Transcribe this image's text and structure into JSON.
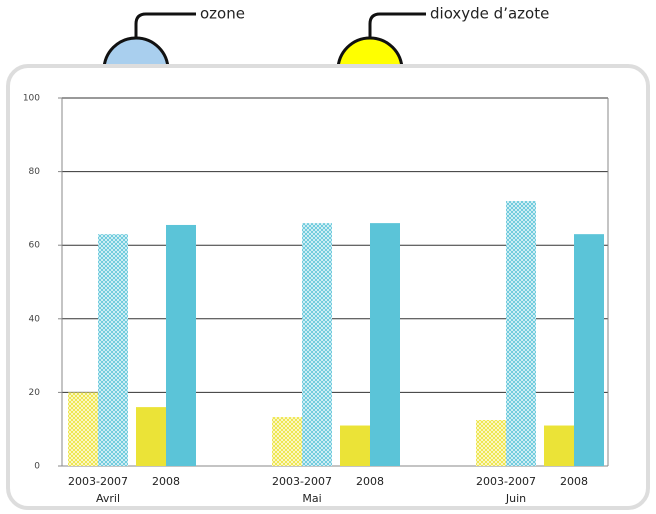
{
  "chart_data": {
    "type": "grouped_bar",
    "categories": [
      "Avril",
      "Mai",
      "Juin"
    ],
    "periods": [
      "2003-2007",
      "2008"
    ],
    "series": [
      {
        "name": "dioxyde d’azote",
        "color": "#ebe337",
        "marker_color": "#ffff00",
        "values": [
          [
            20,
            16
          ],
          [
            13.3,
            11
          ],
          [
            12.5,
            11
          ]
        ]
      },
      {
        "name": "ozone",
        "color": "#5bc4d8",
        "marker_color": "#a9cfee",
        "values": [
          [
            63,
            65.5
          ],
          [
            66,
            66
          ],
          [
            72,
            63
          ]
        ]
      }
    ],
    "ylim": [
      0,
      100
    ],
    "yticks": [
      0,
      20,
      40,
      60,
      80,
      100
    ],
    "grid": true
  }
}
